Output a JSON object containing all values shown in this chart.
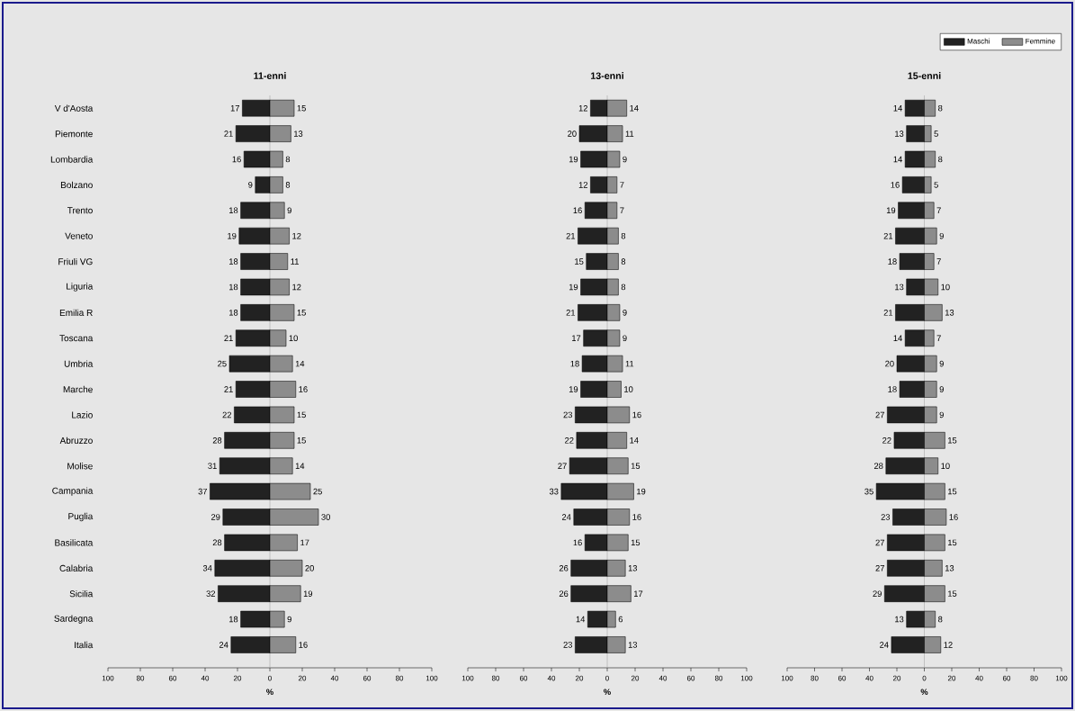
{
  "chart_data": [
    {
      "type": "bar",
      "orientation": "horizontal",
      "title": "11-enni",
      "xlabel": "%",
      "categories": [
        "V d'Aosta",
        "Piemonte",
        "Lombardia",
        "Bolzano",
        "Trento",
        "Veneto",
        "Friuli VG",
        "Liguria",
        "Emilia R",
        "Toscana",
        "Umbria",
        "Marche",
        "Lazio",
        "Abruzzo",
        "Molise",
        "Campania",
        "Puglia",
        "Basilicata",
        "Calabria",
        "Sicilia",
        "Sardegna",
        "Italia"
      ],
      "series": [
        {
          "color": "#222222",
          "base": [
            -17,
            -21,
            -16,
            -9,
            -18,
            -19,
            -18,
            -18,
            -18,
            -21,
            -25,
            -21,
            -22,
            -28,
            -31,
            -37,
            -29,
            -28,
            -34,
            -32,
            -18,
            -24
          ],
          "values": [
            17,
            21,
            16,
            9,
            18,
            19,
            18,
            18,
            18,
            21,
            25,
            21,
            22,
            28,
            31,
            37,
            29,
            28,
            34,
            32,
            18,
            24
          ],
          "value_labels": [
            "17",
            "21",
            "16",
            "9",
            "18",
            "19",
            "18",
            "18",
            "18",
            "21",
            "25",
            "21",
            "22",
            "28",
            "31",
            "37",
            "29",
            "28",
            "34",
            "32",
            "18",
            "24"
          ]
        },
        {
          "color": "#8c8c8c",
          "values": [
            15,
            13,
            8,
            8,
            9,
            12,
            11,
            12,
            15,
            10,
            14,
            16,
            15,
            15,
            14,
            25,
            30,
            17,
            20,
            19,
            9,
            16
          ],
          "value_labels": [
            "15",
            "13",
            "8",
            "8",
            "9",
            "12",
            "11",
            "12",
            "15",
            "10",
            "14",
            "16",
            "15",
            "15",
            "14",
            "25",
            "30",
            "17",
            "20",
            "19",
            "9",
            "16"
          ]
        }
      ],
      "xlim": [
        -100,
        100
      ],
      "xticks": [
        {
          "value": -100,
          "label": "100"
        },
        {
          "value": -80,
          "label": "80"
        },
        {
          "value": -60,
          "label": "60"
        },
        {
          "value": -40,
          "label": "40"
        },
        {
          "value": -20,
          "label": "20"
        },
        0,
        20,
        40,
        60,
        80,
        100
      ],
      "ref_lines": [
        {
          "axis": "x",
          "value": 0,
          "color": "#a0a0a0"
        }
      ]
    },
    {
      "type": "bar",
      "orientation": "horizontal",
      "title": "13-enni",
      "xlabel": "%",
      "tick_labels": "x",
      "categories": [
        null,
        null,
        null,
        null,
        null,
        null,
        null,
        null,
        null,
        null,
        null,
        null,
        null,
        null,
        null,
        null,
        null,
        null,
        null,
        null,
        null,
        null
      ],
      "series": [
        {
          "color": "#222222",
          "base": [
            -12,
            -20,
            -19,
            -12,
            -16,
            -21,
            -15,
            -19,
            -21,
            -17,
            -18,
            -19,
            -23,
            -22,
            -27,
            -33,
            -24,
            -16,
            -26,
            -26,
            -14,
            -23
          ],
          "values": [
            12,
            20,
            19,
            12,
            16,
            21,
            15,
            19,
            21,
            17,
            18,
            19,
            23,
            22,
            27,
            33,
            24,
            16,
            26,
            26,
            14,
            23
          ],
          "value_labels": [
            "12",
            "20",
            "19",
            "12",
            "16",
            "21",
            "15",
            "19",
            "21",
            "17",
            "18",
            "19",
            "23",
            "22",
            "27",
            "33",
            "24",
            "16",
            "26",
            "26",
            "14",
            "23"
          ]
        },
        {
          "color": "#8c8c8c",
          "values": [
            14,
            11,
            9,
            7,
            7,
            8,
            8,
            8,
            9,
            9,
            11,
            10,
            16,
            14,
            15,
            19,
            16,
            15,
            13,
            17,
            6,
            13
          ],
          "value_labels": [
            "14",
            "11",
            "9",
            "7",
            "7",
            "8",
            "8",
            "8",
            "9",
            "9",
            "11",
            "10",
            "16",
            "14",
            "15",
            "19",
            "16",
            "15",
            "13",
            "17",
            "6",
            "13"
          ]
        }
      ],
      "xlim": [
        -100,
        100
      ],
      "xticks": [
        {
          "value": -100,
          "label": "100"
        },
        {
          "value": -80,
          "label": "80"
        },
        {
          "value": -60,
          "label": "60"
        },
        {
          "value": -40,
          "label": "40"
        },
        {
          "value": -20,
          "label": "20"
        },
        0,
        20,
        40,
        60,
        80,
        100
      ],
      "ref_lines": [
        {
          "axis": "x",
          "value": 0,
          "color": "#a0a0a0"
        }
      ]
    },
    {
      "type": "bar",
      "orientation": "horizontal",
      "title": "15-enni",
      "xlabel": "%",
      "tick_labels": "x",
      "legend": "top right",
      "categories": [
        null,
        null,
        null,
        null,
        null,
        null,
        null,
        null,
        null,
        null,
        null,
        null,
        null,
        null,
        null,
        null,
        null,
        null,
        null,
        null,
        null,
        null
      ],
      "series": [
        {
          "name": "Maschi",
          "color": "#222222",
          "base": [
            -14,
            -13,
            -14,
            -16,
            -19,
            -21,
            -18,
            -13,
            -21,
            -14,
            -20,
            -18,
            -27,
            -22,
            -28,
            -35,
            -23,
            -27,
            -27,
            -29,
            -13,
            -24
          ],
          "values": [
            14,
            13,
            14,
            16,
            19,
            21,
            18,
            13,
            21,
            14,
            20,
            18,
            27,
            22,
            28,
            35,
            23,
            27,
            27,
            29,
            13,
            24
          ],
          "value_labels": [
            "14",
            "13",
            "14",
            "16",
            "19",
            "21",
            "18",
            "13",
            "21",
            "14",
            "20",
            "18",
            "27",
            "22",
            "28",
            "35",
            "23",
            "27",
            "27",
            "29",
            "13",
            "24"
          ]
        },
        {
          "name": "Femmine",
          "color": "#8c8c8c",
          "values": [
            8,
            5,
            8,
            5,
            7,
            9,
            7,
            10,
            13,
            7,
            9,
            9,
            9,
            15,
            10,
            15,
            16,
            15,
            13,
            15,
            8,
            12
          ],
          "value_labels": [
            "8",
            "5",
            "8",
            "5",
            "7",
            "9",
            "7",
            "10",
            "13",
            "7",
            "9",
            "9",
            "9",
            "15",
            "10",
            "15",
            "16",
            "15",
            "13",
            "15",
            "8",
            "12"
          ]
        }
      ],
      "xlim": [
        -100,
        100
      ],
      "xticks": [
        {
          "value": -100,
          "label": "100"
        },
        {
          "value": -80,
          "label": "80"
        },
        {
          "value": -60,
          "label": "60"
        },
        {
          "value": -40,
          "label": "40"
        },
        {
          "value": -20,
          "label": "20"
        },
        0,
        20,
        40,
        60,
        80,
        100
      ],
      "ref_lines": [
        {
          "axis": "x",
          "value": 0,
          "color": "#a0a0a0"
        }
      ]
    }
  ]
}
